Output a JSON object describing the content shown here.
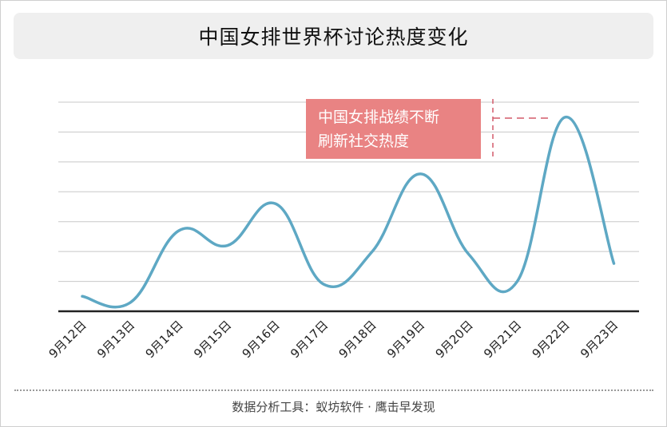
{
  "title": "中国女排世界杯讨论热度变化",
  "source": "数据分析工具：蚁坊软件 · 鹰击早发现",
  "colors": {
    "line": "#5ea8c4",
    "grid": "#c8c8c8",
    "baseline": "#222222",
    "annotation_fill": "#e98383",
    "annotation_line": "#d45a6a"
  },
  "chart_data": {
    "type": "line",
    "categories": [
      "9月12日",
      "9月13日",
      "9月14日",
      "9月15日",
      "9月16日",
      "9月17日",
      "9月18日",
      "9月19日",
      "9月20日",
      "9月21日",
      "9月22日",
      "9月23日"
    ],
    "values": [
      0.5,
      0.3,
      2.7,
      2.2,
      3.6,
      0.9,
      2.0,
      4.6,
      1.9,
      1.0,
      6.5,
      1.6
    ],
    "ylim": [
      0,
      7
    ],
    "grid": true,
    "y_ticks_shown": false,
    "annotation": {
      "text_line1": "中国女排战绩不断",
      "text_line2": "刷新社交热度",
      "target_category": "9月22日"
    }
  }
}
